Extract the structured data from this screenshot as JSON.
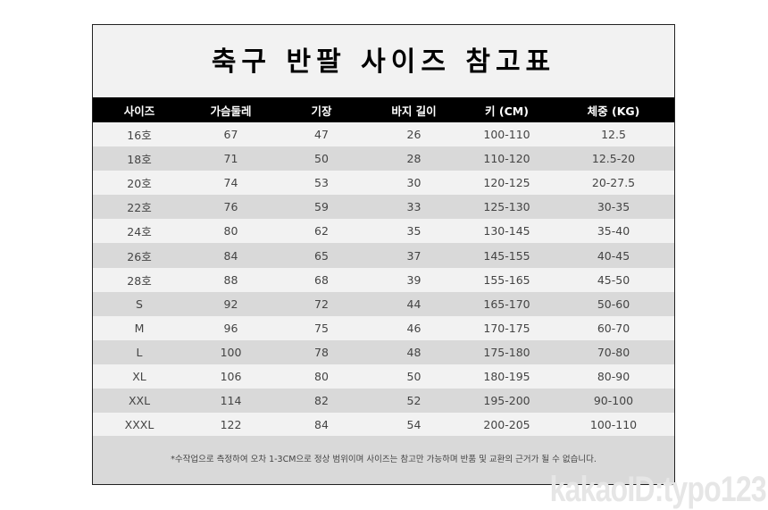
{
  "title": "축구 반팔 사이즈 참고표",
  "columns": [
    "사이즈",
    "가슴둘레",
    "기장",
    "바지 길이",
    "키 (CM)",
    "체중 (KG)"
  ],
  "rows": [
    [
      "16호",
      "67",
      "47",
      "26",
      "100-110",
      "12.5"
    ],
    [
      "18호",
      "71",
      "50",
      "28",
      "110-120",
      "12.5-20"
    ],
    [
      "20호",
      "74",
      "53",
      "30",
      "120-125",
      "20-27.5"
    ],
    [
      "22호",
      "76",
      "59",
      "33",
      "125-130",
      "30-35"
    ],
    [
      "24호",
      "80",
      "62",
      "35",
      "130-145",
      "35-40"
    ],
    [
      "26호",
      "84",
      "65",
      "37",
      "145-155",
      "40-45"
    ],
    [
      "28호",
      "88",
      "68",
      "39",
      "155-165",
      "45-50"
    ],
    [
      "S",
      "92",
      "72",
      "44",
      "165-170",
      "50-60"
    ],
    [
      "M",
      "96",
      "75",
      "46",
      "170-175",
      "60-70"
    ],
    [
      "L",
      "100",
      "78",
      "48",
      "175-180",
      "70-80"
    ],
    [
      "XL",
      "106",
      "80",
      "50",
      "180-195",
      "80-90"
    ],
    [
      "XXL",
      "114",
      "82",
      "52",
      "195-200",
      "90-100"
    ],
    [
      "XXXL",
      "122",
      "84",
      "54",
      "200-205",
      "100-110"
    ]
  ],
  "note": "*수작업으로 측정하여 오차 1-3CM으로 정상 범위이며 사이즈는 참고만 가능하며 반품 및 교환의 근거가 될 수 없습니다.",
  "watermark": "kakaoID:typo123"
}
